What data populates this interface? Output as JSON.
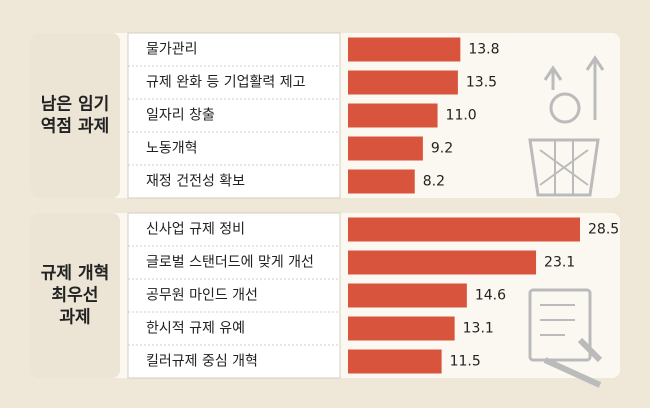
{
  "chart_data": [
    {
      "type": "bar",
      "orientation": "horizontal",
      "title": [
        "남은 임기",
        "역점 과제"
      ],
      "categories": [
        "물가관리",
        "규제 완화 등 기업활력 제고",
        "일자리 창출",
        "노동개혁",
        "재정 건전성 확보"
      ],
      "values": [
        13.8,
        13.5,
        11.0,
        9.2,
        8.2
      ],
      "value_labels": [
        "13.8",
        "13.5",
        "11.0",
        "9.2",
        "8.2"
      ],
      "color": "#d9543c"
    },
    {
      "type": "bar",
      "orientation": "horizontal",
      "title": [
        "규제 개혁",
        "최우선",
        "과제"
      ],
      "categories": [
        "신사업 규제 정비",
        "글로벌 스탠더드에 맞게 개선",
        "공무원 마인드 개선",
        "한시적 규제 유예",
        "킬러규제 중심 개혁"
      ],
      "values": [
        28.5,
        23.1,
        14.6,
        13.1,
        11.5
      ],
      "value_labels": [
        "28.5",
        "23.1",
        "14.6",
        "13.1",
        "11.5"
      ],
      "color": "#d9543c"
    }
  ]
}
